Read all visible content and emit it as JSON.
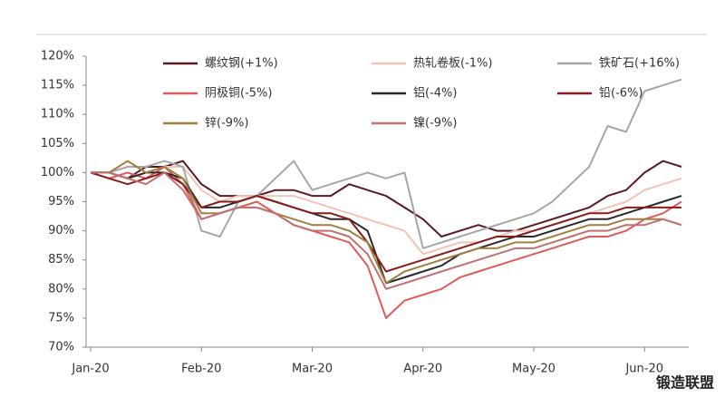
{
  "chart_data": {
    "type": "line",
    "categories": [
      "Jan-20",
      null,
      null,
      null,
      null,
      null,
      "Feb-20",
      null,
      null,
      null,
      null,
      null,
      "Mar-20",
      null,
      null,
      null,
      null,
      null,
      "Apr-20",
      null,
      null,
      null,
      null,
      null,
      "May-20",
      null,
      null,
      null,
      null,
      null,
      "Jun-20",
      null,
      null
    ],
    "ylim": [
      70,
      120
    ],
    "yticks": [
      {
        "value": 70,
        "label": "70%"
      },
      {
        "value": 75,
        "label": "75%"
      },
      {
        "value": 80,
        "label": "80%"
      },
      {
        "value": 85,
        "label": "85%"
      },
      {
        "value": 90,
        "label": "90%"
      },
      {
        "value": 95,
        "label": "95%"
      },
      {
        "value": 100,
        "label": "100%"
      },
      {
        "value": 105,
        "label": "105%"
      },
      {
        "value": 110,
        "label": "110%"
      },
      {
        "value": 115,
        "label": "115%"
      },
      {
        "value": 120,
        "label": "120%"
      }
    ],
    "grid": false,
    "legend": "top",
    "series": [
      {
        "name": "螺纹钢(+1%)",
        "color": "#5a1a22",
        "values": [
          100,
          100,
          99,
          101,
          101,
          102,
          98,
          96,
          96,
          96,
          97,
          97,
          96,
          96,
          98,
          97,
          96,
          94,
          92,
          89,
          90,
          91,
          90,
          90,
          91,
          92,
          93,
          94,
          96,
          97,
          100,
          102,
          101
        ]
      },
      {
        "name": "热轧卷板(-1%)",
        "color": "#f2c4b4",
        "values": [
          100,
          100,
          99,
          100,
          101,
          101,
          97,
          95,
          96,
          96,
          96,
          96,
          95,
          94,
          93,
          92,
          91,
          90,
          86,
          87,
          88,
          88,
          89,
          90,
          90,
          91,
          92,
          93,
          94,
          95,
          97,
          98,
          99
        ]
      },
      {
        "name": "铁矿石(+16%)",
        "color": "#a6a6a6",
        "values": [
          100,
          100,
          101,
          101,
          102,
          101,
          90,
          89,
          95,
          96,
          99,
          102,
          97,
          98,
          99,
          100,
          99,
          100,
          87,
          88,
          89,
          90,
          91,
          92,
          93,
          95,
          98,
          101,
          108,
          107,
          114,
          115,
          116
        ]
      },
      {
        "name": "阴极铜(-5%)",
        "color": "#e05a5a",
        "values": [
          100,
          99,
          100,
          99,
          101,
          98,
          92,
          93,
          94,
          95,
          93,
          91,
          90,
          89,
          88,
          84,
          75,
          78,
          79,
          80,
          82,
          83,
          84,
          85,
          86,
          87,
          88,
          89,
          89,
          90,
          92,
          93,
          95
        ]
      },
      {
        "name": "铝(-4%)",
        "color": "#2a2a2a",
        "values": [
          100,
          100,
          99,
          100,
          100,
          99,
          94,
          94,
          95,
          96,
          95,
          94,
          93,
          92,
          92,
          90,
          81,
          82,
          83,
          84,
          86,
          87,
          88,
          89,
          89,
          90,
          91,
          92,
          92,
          93,
          94,
          95,
          96
        ]
      },
      {
        "name": "铅(-6%)",
        "color": "#8b1a1a",
        "values": [
          100,
          99,
          98,
          99,
          100,
          98,
          94,
          95,
          95,
          96,
          95,
          94,
          93,
          93,
          92,
          88,
          83,
          84,
          85,
          86,
          87,
          88,
          89,
          89,
          90,
          91,
          92,
          93,
          93,
          94,
          94,
          94,
          94
        ]
      },
      {
        "name": "锌(-9%)",
        "color": "#a08040",
        "values": [
          100,
          100,
          102,
          100,
          101,
          99,
          93,
          93,
          94,
          94,
          93,
          92,
          91,
          91,
          90,
          88,
          81,
          83,
          84,
          85,
          86,
          87,
          87,
          88,
          88,
          89,
          90,
          91,
          91,
          92,
          92,
          92,
          91
        ]
      },
      {
        "name": "镍(-9%)",
        "color": "#c07070",
        "values": [
          100,
          100,
          99,
          98,
          100,
          97,
          92,
          93,
          94,
          94,
          93,
          91,
          90,
          90,
          89,
          86,
          80,
          81,
          82,
          83,
          84,
          85,
          86,
          87,
          87,
          88,
          89,
          90,
          90,
          91,
          91,
          92,
          91
        ]
      }
    ],
    "watermark": "锻造联盟"
  }
}
